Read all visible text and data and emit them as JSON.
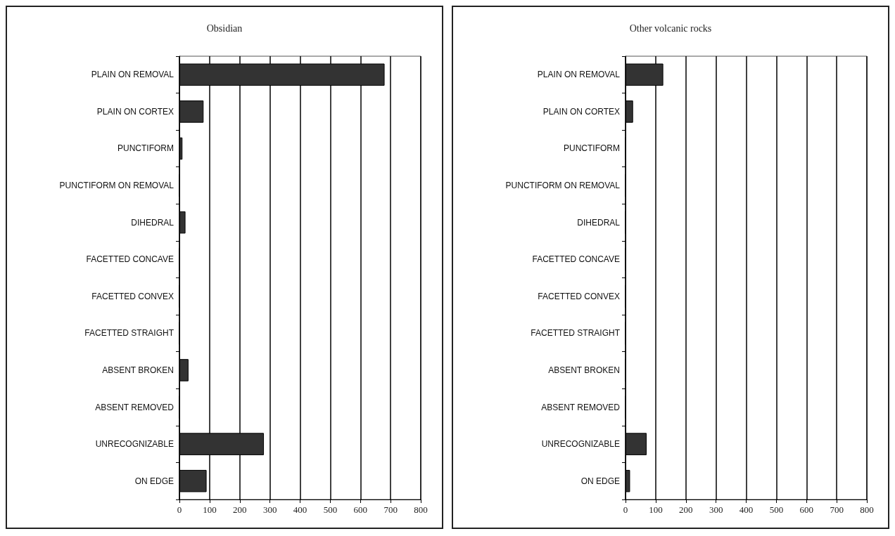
{
  "chart_data": [
    {
      "type": "bar",
      "title": "Obsidian",
      "orientation": "horizontal",
      "categories": [
        "PLAIN ON REMOVAL",
        "PLAIN ON CORTEX",
        "PUNCTIFORM",
        "PUNCTIFORM ON REMOVAL",
        "DIHEDRAL",
        "FACETTED CONCAVE",
        "FACETTED CONVEX",
        "FACETTED STRAIGHT",
        "ABSENT BROKEN",
        "ABSENT REMOVED",
        "UNRECOGNIZABLE",
        "ON EDGE"
      ],
      "values": [
        680,
        80,
        10,
        0,
        20,
        0,
        0,
        0,
        30,
        0,
        280,
        90
      ],
      "color": "#333333",
      "xlim": [
        0,
        800
      ],
      "xticks": [
        0,
        100,
        200,
        300,
        400,
        500,
        600,
        700,
        800
      ],
      "grid": "x"
    },
    {
      "type": "bar",
      "title": "Other volcanic rocks",
      "orientation": "horizontal",
      "categories": [
        "PLAIN ON REMOVAL",
        "PLAIN ON CORTEX",
        "PUNCTIFORM",
        "PUNCTIFORM ON REMOVAL",
        "DIHEDRAL",
        "FACETTED CONCAVE",
        "FACETTED CONVEX",
        "FACETTED STRAIGHT",
        "ABSENT BROKEN",
        "ABSENT REMOVED",
        "UNRECOGNIZABLE",
        "ON EDGE"
      ],
      "values": [
        125,
        25,
        0,
        0,
        0,
        0,
        0,
        0,
        0,
        0,
        70,
        15
      ],
      "color": "#333333",
      "xlim": [
        0,
        800
      ],
      "xticks": [
        0,
        100,
        200,
        300,
        400,
        500,
        600,
        700,
        800
      ],
      "grid": "x"
    }
  ]
}
